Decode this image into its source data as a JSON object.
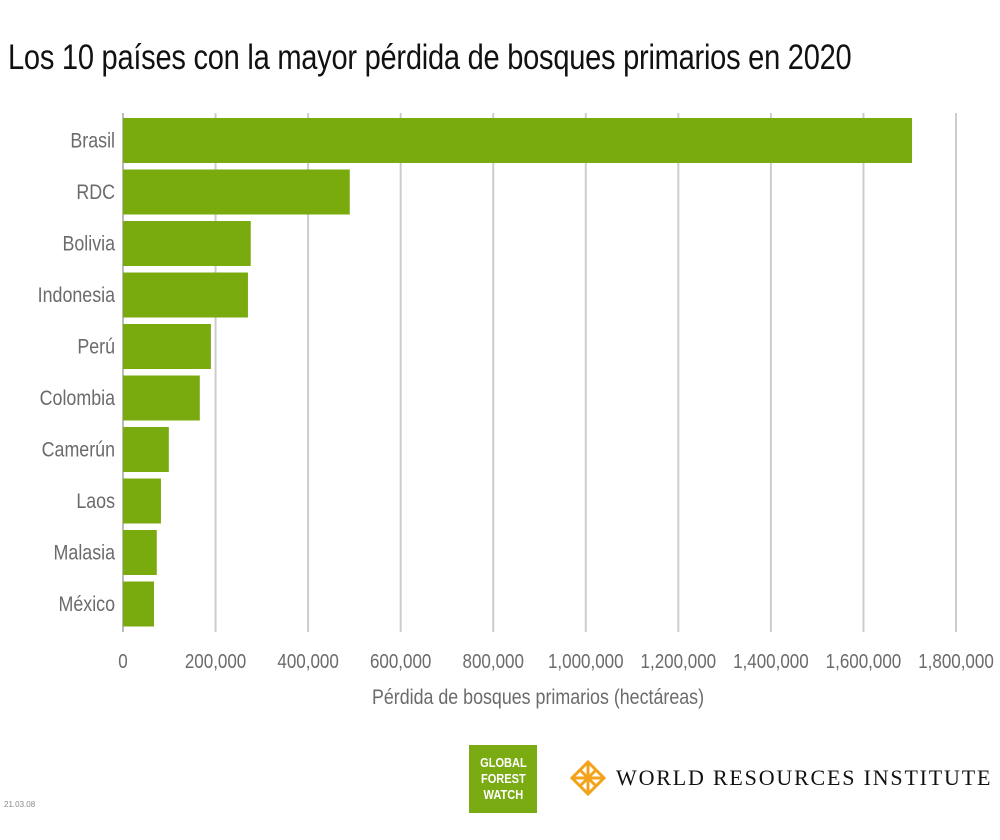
{
  "chart_data": {
    "type": "bar",
    "orientation": "horizontal",
    "title": "Los 10 países con la mayor pérdida de bosques primarios en 2020",
    "xlabel": "Pérdida de bosques primarios (hectáreas)",
    "ylabel": "",
    "categories": [
      "Brasil",
      "RDC",
      "Bolivia",
      "Indonesia",
      "Perú",
      "Colombia",
      "Camerún",
      "Laos",
      "Malasia",
      "México"
    ],
    "values": [
      1705000,
      490000,
      276000,
      270000,
      190000,
      166000,
      99000,
      82000,
      73000,
      67000
    ],
    "xlim": [
      0,
      1800000
    ],
    "xticks": [
      0,
      200000,
      400000,
      600000,
      800000,
      1000000,
      1200000,
      1400000,
      1600000,
      1800000
    ],
    "xtick_labels": [
      "0",
      "200,000",
      "400,000",
      "600,000",
      "800,000",
      "1,000,000",
      "1,200,000",
      "1,400,000",
      "1,600,000",
      "1,800,000"
    ],
    "grid": "vertical",
    "bar_color": "#7aab0e",
    "grid_color": "#cccccc"
  },
  "footer": {
    "gfw_logo": [
      "GLOBAL",
      "FOREST",
      "WATCH"
    ],
    "wri_logo": "WORLD RESOURCES INSTITUTE",
    "date_code": "21.03.08"
  }
}
